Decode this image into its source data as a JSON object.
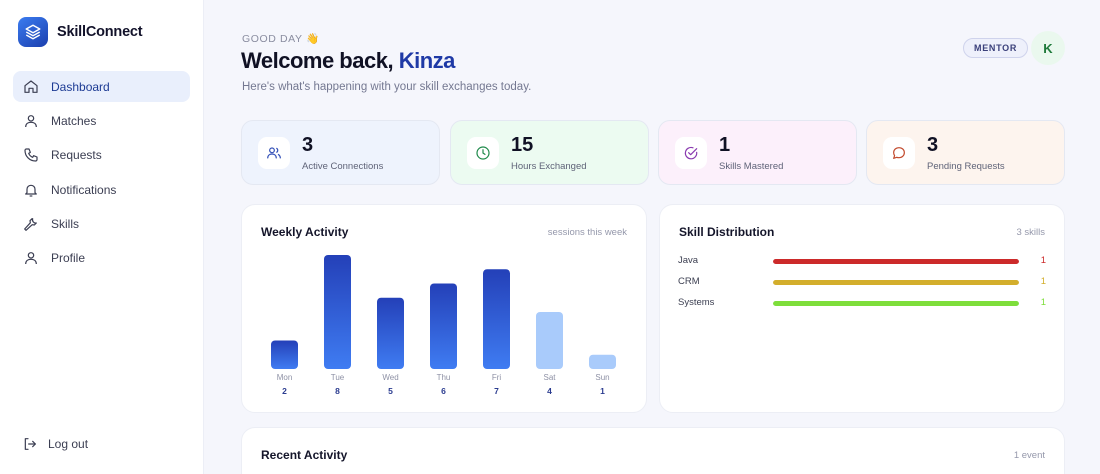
{
  "app": {
    "name": "SkillConnect"
  },
  "sidebar": {
    "items": [
      {
        "label": "Dashboard",
        "icon": "home-icon",
        "active": true
      },
      {
        "label": "Matches",
        "icon": "user-icon"
      },
      {
        "label": "Requests",
        "icon": "phone-icon"
      },
      {
        "label": "Notifications",
        "icon": "bell-icon"
      },
      {
        "label": "Skills",
        "icon": "wrench-icon"
      },
      {
        "label": "Profile",
        "icon": "user-icon"
      }
    ],
    "logout_label": "Log out"
  },
  "header": {
    "greeting": "GOOD DAY 👋",
    "welcome": "Welcome back,",
    "user_name": "Kinza",
    "subtitle": "Here's what's happening with your skill exchanges today.",
    "role_badge": "MENTOR",
    "avatar_initial": "K"
  },
  "stats": [
    {
      "value": "3",
      "label": "Active Connections",
      "icon": "users-icon",
      "bg": "#eef3fd",
      "color": "#3451b8"
    },
    {
      "value": "15",
      "label": "Hours Exchanged",
      "icon": "clock-icon",
      "bg": "#ecfbf1",
      "color": "#1f8a4a"
    },
    {
      "value": "1",
      "label": "Skills Mastered",
      "icon": "check-circle-icon",
      "bg": "#fcf0fb",
      "color": "#8a3bb0"
    },
    {
      "value": "3",
      "label": "Pending Requests",
      "icon": "chat-icon",
      "bg": "#fdf4ee",
      "color": "#c24a2d"
    }
  ],
  "weekly": {
    "title": "Weekly Activity",
    "note": "sessions this week"
  },
  "chart_data": {
    "type": "bar",
    "categories": [
      "Mon",
      "Tue",
      "Wed",
      "Thu",
      "Fri",
      "Sat",
      "Sun"
    ],
    "values": [
      2,
      8,
      5,
      6,
      7,
      4,
      1
    ],
    "title": "Weekly Activity",
    "xlabel": "",
    "ylabel": "",
    "ylim": [
      0,
      8
    ],
    "grid": false,
    "colors": {
      "weekday_top": "#2440b8",
      "weekday_bottom": "#3f7cf2",
      "weekend": "#a9cbfb"
    }
  },
  "skills": {
    "title": "Skill Distribution",
    "note": "3 skills",
    "items": [
      {
        "name": "Java",
        "count": "1",
        "color": "#cc2a2a",
        "fraction": 1
      },
      {
        "name": "CRM",
        "count": "1",
        "color": "#d3ae2c",
        "fraction": 1
      },
      {
        "name": "Systems",
        "count": "1",
        "color": "#7ede3b",
        "fraction": 1
      }
    ]
  },
  "recent": {
    "title": "Recent Activity",
    "note": "1 event"
  }
}
